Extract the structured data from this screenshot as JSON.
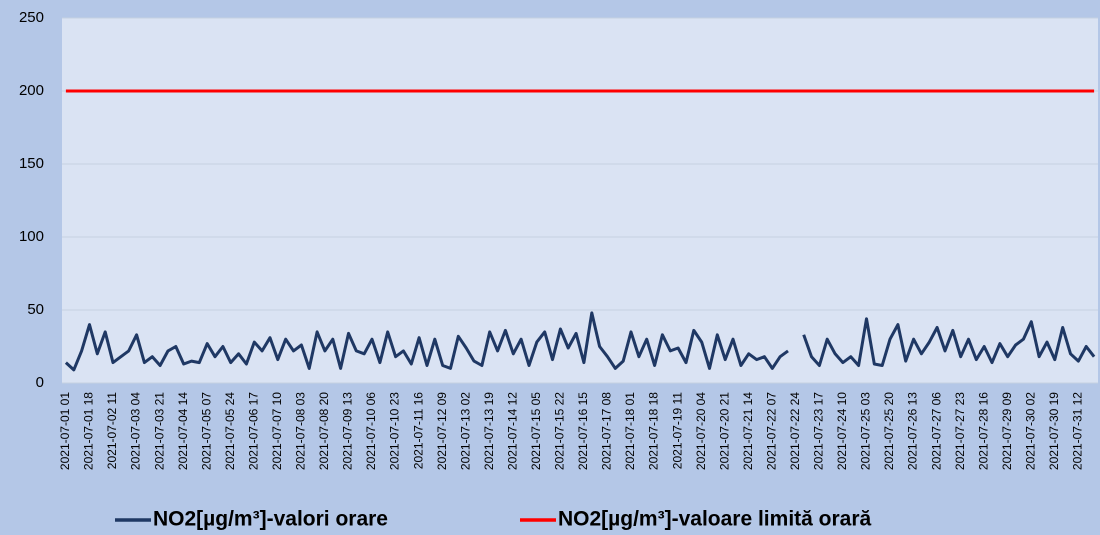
{
  "chart_data": {
    "type": "line",
    "categories": [
      "2021-07-01 01",
      null,
      null,
      "2021-07-01 18",
      null,
      null,
      "2021-07-02 11",
      null,
      null,
      "2021-07-03 04",
      null,
      null,
      "2021-07-03 21",
      null,
      null,
      "2021-07-04 14",
      null,
      null,
      "2021-07-05 07",
      null,
      null,
      "2021-07-05 24",
      null,
      null,
      "2021-07-06 17",
      null,
      null,
      "2021-07-07 10",
      null,
      null,
      "2021-07-08 03",
      null,
      null,
      "2021-07-08 20",
      null,
      null,
      "2021-07-09 13",
      null,
      null,
      "2021-07-10 06",
      null,
      null,
      "2021-07-10 23",
      null,
      null,
      "2021-07-11 16",
      null,
      null,
      "2021-07-12 09",
      null,
      null,
      "2021-07-13 02",
      null,
      null,
      "2021-07-13 19",
      null,
      null,
      "2021-07-14 12",
      null,
      null,
      "2021-07-15 05",
      null,
      null,
      "2021-07-15 22",
      null,
      null,
      "2021-07-16 15",
      null,
      null,
      "2021-07-17 08",
      null,
      null,
      "2021-07-18 01",
      null,
      null,
      "2021-07-18 18",
      null,
      null,
      "2021-07-19 11",
      null,
      null,
      "2021-07-20 04",
      null,
      null,
      "2021-07-20 21",
      null,
      null,
      "2021-07-21 14",
      null,
      null,
      "2021-07-22 07",
      null,
      null,
      "2021-07-22 24",
      null,
      null,
      "2021-07-23 17",
      null,
      null,
      "2021-07-24 10",
      null,
      null,
      "2021-07-25 03",
      null,
      null,
      "2021-07-25 20",
      null,
      null,
      "2021-07-26 13",
      null,
      null,
      "2021-07-27 06",
      null,
      null,
      "2021-07-27 23",
      null,
      null,
      "2021-07-28 16",
      null,
      null,
      "2021-07-29 09",
      null,
      null,
      "2021-07-30 02",
      null,
      null,
      "2021-07-30 19",
      null,
      null,
      "2021-07-31 12",
      null,
      null
    ],
    "series": [
      {
        "name": "NO2[µg/m³]-valori orare",
        "color": "#1f3864",
        "values": [
          14,
          9,
          22,
          40,
          20,
          35,
          14,
          18,
          22,
          33,
          14,
          18,
          12,
          22,
          25,
          13,
          15,
          14,
          27,
          18,
          25,
          14,
          20,
          13,
          28,
          22,
          31,
          16,
          30,
          22,
          26,
          10,
          35,
          22,
          30,
          10,
          34,
          22,
          20,
          30,
          14,
          35,
          18,
          22,
          13,
          31,
          12,
          30,
          12,
          10,
          32,
          24,
          15,
          12,
          35,
          22,
          36,
          20,
          30,
          12,
          28,
          35,
          16,
          37,
          24,
          34,
          14,
          48,
          25,
          18,
          10,
          15,
          35,
          18,
          30,
          12,
          33,
          22,
          24,
          14,
          36,
          28,
          10,
          33,
          16,
          30,
          12,
          20,
          16,
          18,
          10,
          18,
          22,
          null,
          33,
          18,
          12,
          30,
          20,
          14,
          18,
          12,
          44,
          13,
          12,
          30,
          40,
          15,
          30,
          20,
          28,
          38,
          22,
          36,
          18,
          30,
          16,
          25,
          14,
          27,
          18,
          26,
          30,
          42,
          18,
          28,
          16,
          38,
          20,
          15,
          25,
          18
        ]
      },
      {
        "name": "NO2[µg/m³]-valoare limită orară",
        "color": "#ff0000",
        "values": [
          200,
          200,
          200,
          200,
          200,
          200,
          200,
          200,
          200,
          200,
          200,
          200,
          200,
          200,
          200,
          200,
          200,
          200,
          200,
          200,
          200,
          200,
          200,
          200,
          200,
          200,
          200,
          200,
          200,
          200,
          200,
          200,
          200,
          200,
          200,
          200,
          200,
          200,
          200,
          200,
          200,
          200,
          200,
          200,
          200,
          200,
          200,
          200,
          200,
          200,
          200,
          200,
          200,
          200,
          200,
          200,
          200,
          200,
          200,
          200,
          200,
          200,
          200,
          200,
          200,
          200,
          200,
          200,
          200,
          200,
          200,
          200,
          200,
          200,
          200,
          200,
          200,
          200,
          200,
          200,
          200,
          200,
          200,
          200,
          200,
          200,
          200,
          200,
          200,
          200,
          200,
          200,
          200,
          200,
          200,
          200,
          200,
          200,
          200,
          200,
          200,
          200,
          200,
          200,
          200,
          200,
          200,
          200,
          200,
          200,
          200,
          200,
          200,
          200,
          200,
          200,
          200,
          200,
          200,
          200,
          200,
          200,
          200,
          200,
          200,
          200,
          200,
          200,
          200,
          200,
          200,
          200
        ]
      }
    ],
    "ylim": [
      0,
      250
    ],
    "yticks": [
      0,
      50,
      100,
      150,
      200,
      250
    ],
    "grid": true,
    "legend": "bottom"
  }
}
